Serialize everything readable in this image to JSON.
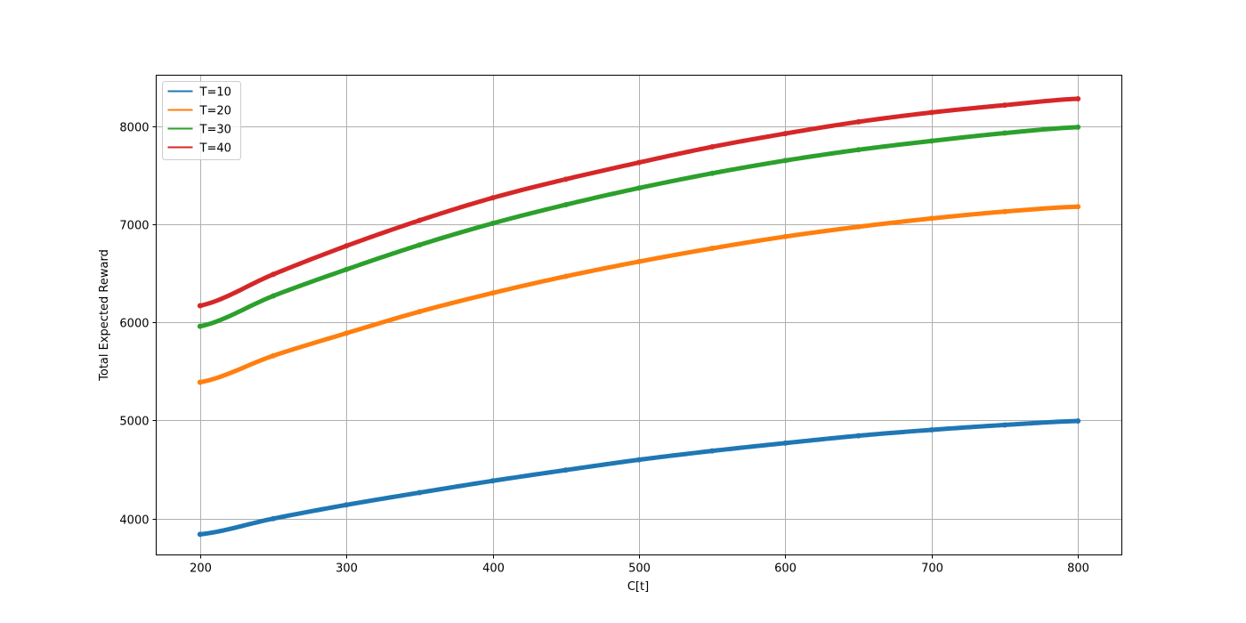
{
  "chart_data": {
    "type": "line",
    "title": "",
    "xlabel": "C[t]",
    "ylabel": "Total Expected Reward",
    "xlim": [
      170,
      830
    ],
    "ylim": [
      3630,
      8520
    ],
    "xticks": [
      200,
      300,
      400,
      500,
      600,
      700,
      800
    ],
    "yticks": [
      4000,
      5000,
      6000,
      7000,
      8000
    ],
    "grid": true,
    "legend_position": "top-left",
    "x_range": [
      200,
      800
    ],
    "series": [
      {
        "name": "T=10",
        "color": "#1f77b4",
        "x": [
          200,
          250,
          300,
          350,
          400,
          450,
          500,
          550,
          600,
          650,
          700,
          750,
          800
        ],
        "y": [
          3840,
          4000,
          4140,
          4265,
          4385,
          4495,
          4600,
          4690,
          4770,
          4845,
          4905,
          4955,
          4995
        ]
      },
      {
        "name": "T=20",
        "color": "#ff7f0e",
        "x": [
          200,
          250,
          300,
          350,
          400,
          450,
          500,
          550,
          600,
          650,
          700,
          750,
          800
        ],
        "y": [
          5390,
          5660,
          5890,
          6110,
          6300,
          6470,
          6620,
          6755,
          6875,
          6975,
          7060,
          7130,
          7180
        ]
      },
      {
        "name": "T=30",
        "color": "#2ca02c",
        "x": [
          200,
          250,
          300,
          350,
          400,
          450,
          500,
          550,
          600,
          650,
          700,
          750,
          800
        ],
        "y": [
          5960,
          6270,
          6540,
          6790,
          7010,
          7200,
          7370,
          7520,
          7650,
          7760,
          7850,
          7930,
          7990
        ]
      },
      {
        "name": "T=40",
        "color": "#d62728",
        "x": [
          200,
          250,
          300,
          350,
          400,
          450,
          500,
          550,
          600,
          650,
          700,
          750,
          800
        ],
        "y": [
          6170,
          6490,
          6780,
          7040,
          7270,
          7460,
          7630,
          7790,
          7925,
          8045,
          8140,
          8215,
          8280
        ]
      }
    ]
  }
}
